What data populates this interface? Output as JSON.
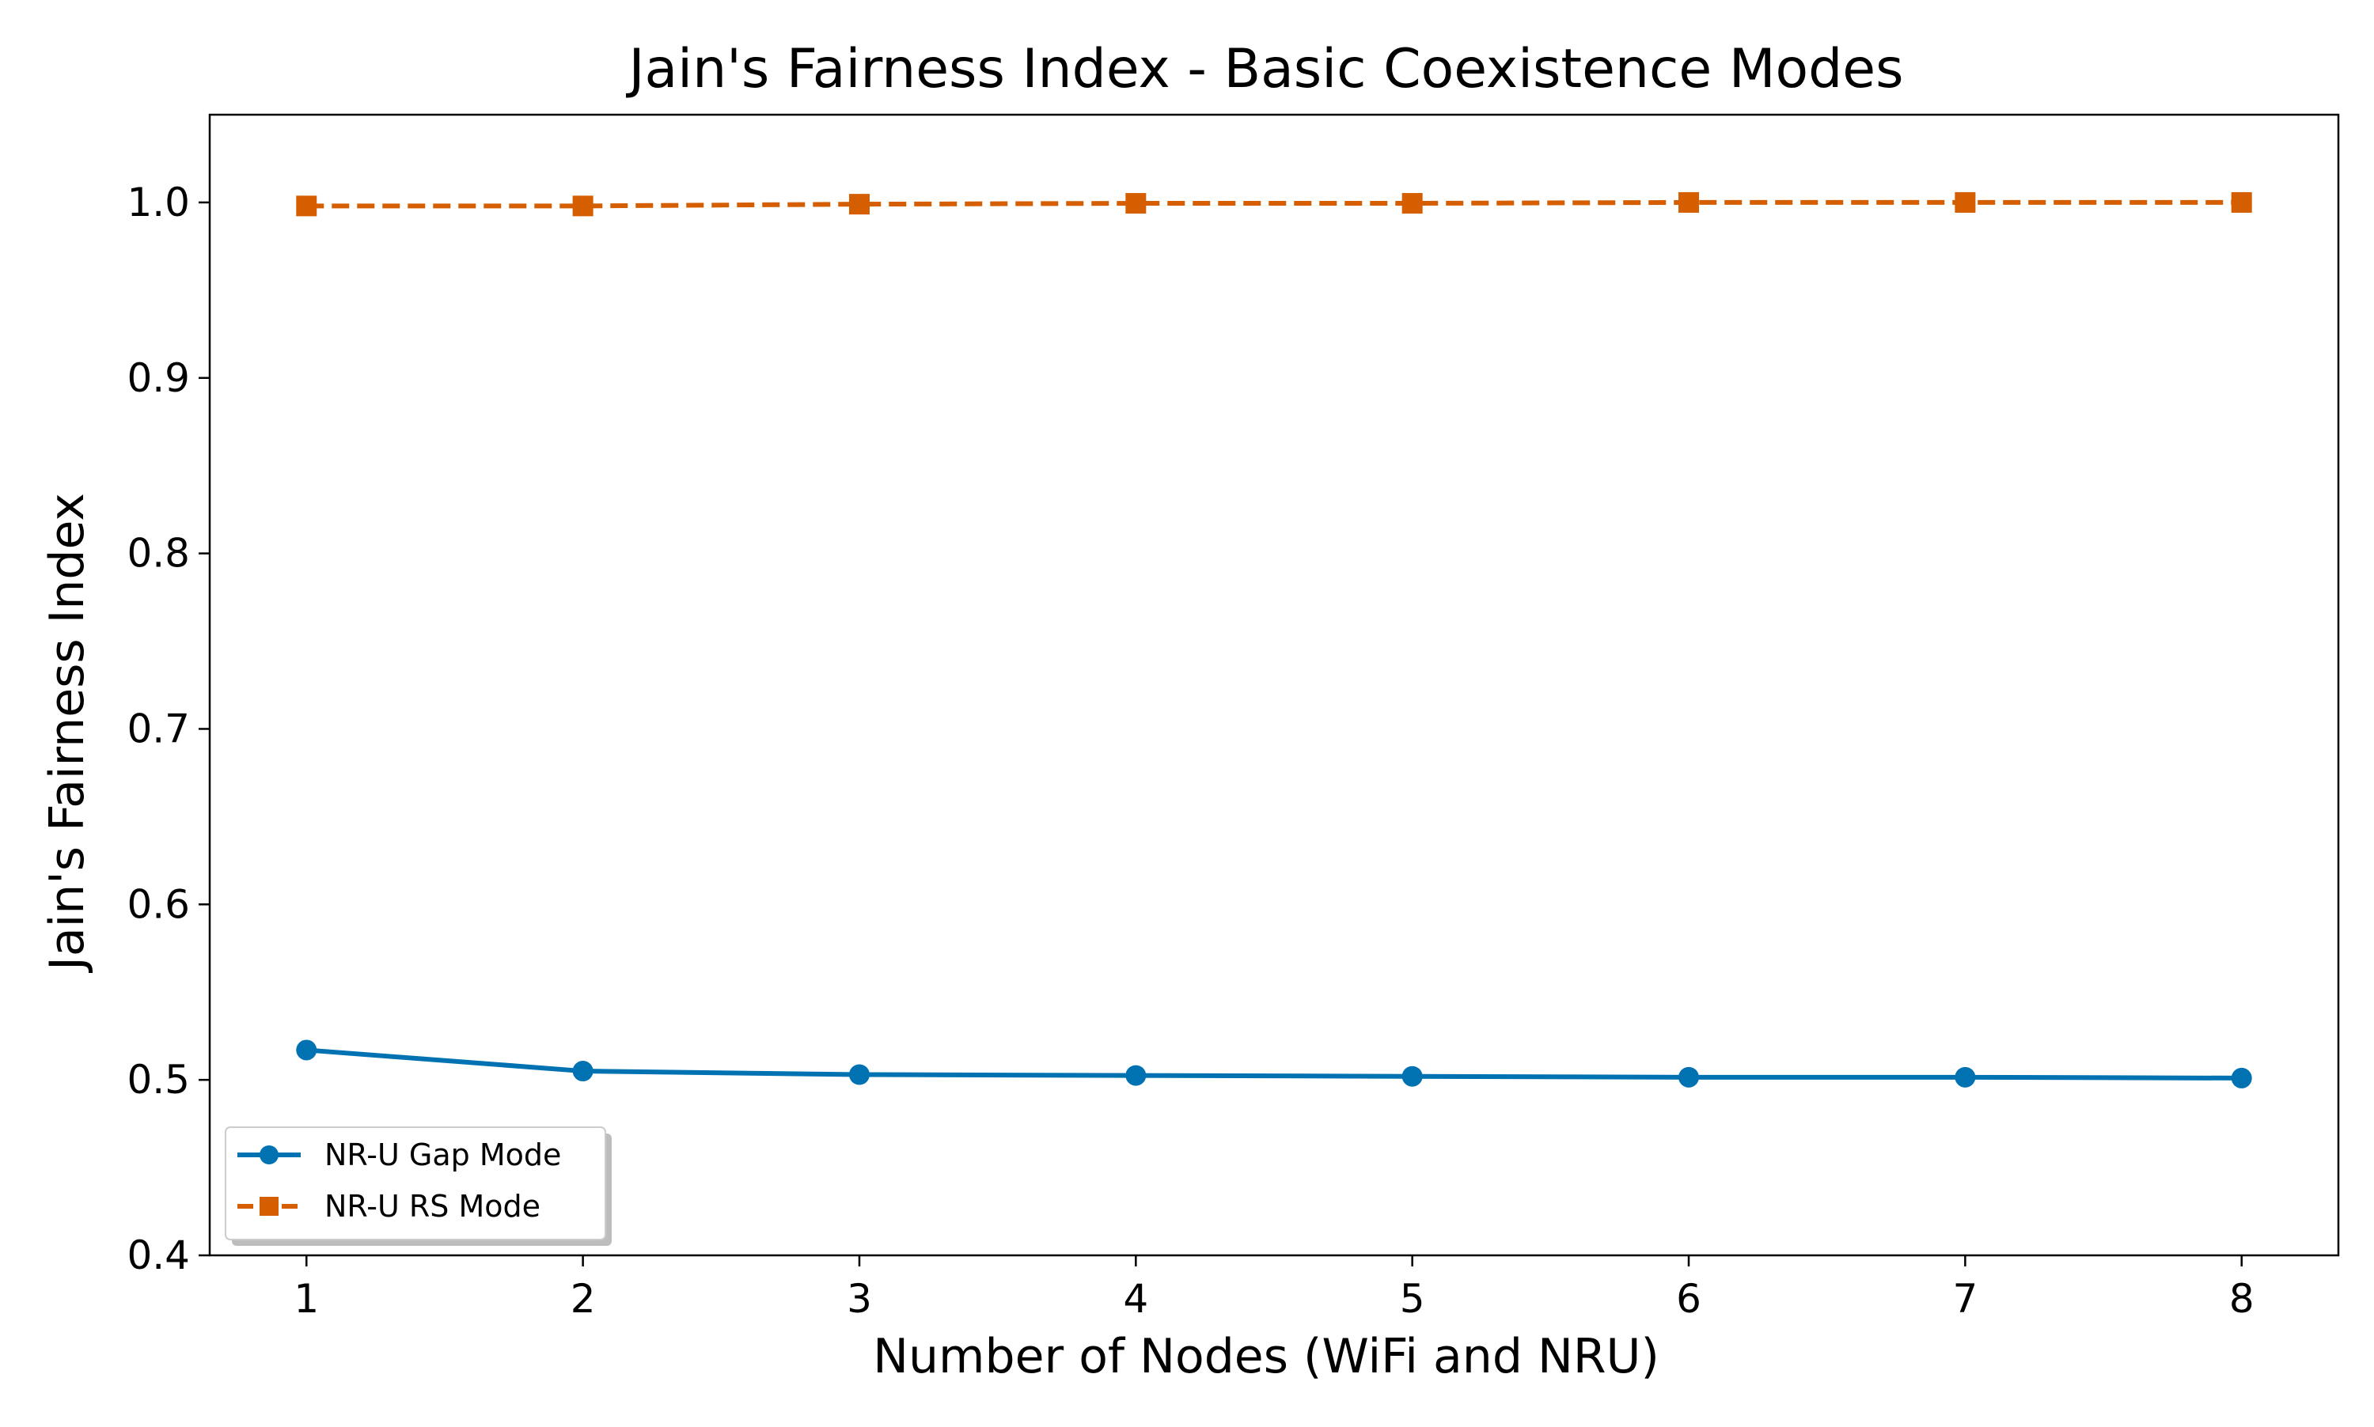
{
  "chart_data": {
    "type": "line",
    "title": "Jain's Fairness Index - Basic Coexistence Modes",
    "xlabel": "Number of Nodes (WiFi and NRU)",
    "ylabel": "Jain's Fairness Index",
    "x": [
      1,
      2,
      3,
      4,
      5,
      6,
      7,
      8
    ],
    "xlim": [
      0.65,
      8.35
    ],
    "ylim": [
      0.4,
      1.05
    ],
    "yticks": [
      0.4,
      0.5,
      0.6,
      0.7,
      0.8,
      0.9,
      1.0
    ],
    "ytick_labels": [
      "0.4",
      "0.5",
      "0.6",
      "0.7",
      "0.8",
      "0.9",
      "1.0"
    ],
    "xtick_labels": [
      "1",
      "2",
      "3",
      "4",
      "5",
      "6",
      "7",
      "8"
    ],
    "grid": false,
    "legend_position": "lower-left",
    "series": [
      {
        "name": "NR-U Gap Mode",
        "color": "#0072b2",
        "marker": "circle",
        "line_style": "solid",
        "values": [
          0.517,
          0.505,
          0.503,
          0.5025,
          0.502,
          0.5015,
          0.5015,
          0.501
        ]
      },
      {
        "name": "NR-U RS Mode",
        "color": "#d55e00",
        "marker": "square",
        "line_style": "dashed",
        "values": [
          0.998,
          0.998,
          0.999,
          0.9995,
          0.9995,
          1.0,
          1.0,
          1.0
        ]
      }
    ]
  }
}
